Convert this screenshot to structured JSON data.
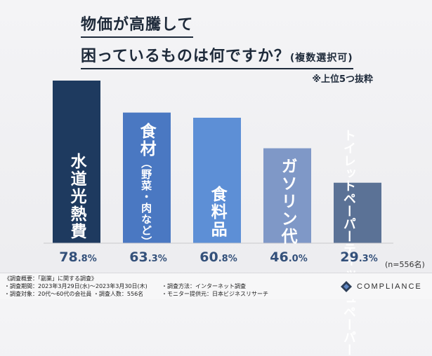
{
  "title": {
    "line1": "物価が高騰して",
    "line2": "困っているものは何ですか？",
    "line2_suffix": "(複数選択可)"
  },
  "note": "※上位5つ抜粋",
  "n_note": "(n=556名)",
  "chart_data": {
    "type": "bar",
    "categories": [
      "水道光熱費",
      "食材（野菜・肉など）",
      "食料品",
      "ガソリン代",
      "トイレットペーパー ティッシュペーパー"
    ],
    "values": [
      78.8,
      63.3,
      60.8,
      46.0,
      29.3
    ],
    "value_labels": [
      {
        "int": "78",
        "dec": ".8%"
      },
      {
        "int": "63",
        "dec": ".3%"
      },
      {
        "int": "60",
        "dec": ".8%"
      },
      {
        "int": "46",
        "dec": ".0%"
      },
      {
        "int": "29",
        "dec": ".3%"
      }
    ],
    "colors": [
      "#1e3a5f",
      "#4a78c2",
      "#5d8fd6",
      "#7f98c7",
      "#5b7296"
    ],
    "ylim": [
      0,
      100
    ],
    "grid": false
  },
  "labels": {
    "bar1": "水道光熱費",
    "bar2_main": "食材",
    "bar2_sub": "（野菜・肉など）",
    "bar3": "食料品",
    "bar4": "ガソリン代",
    "bar5_line1": "トイレットペーパー",
    "bar5_line2": "ティッシュペーパー"
  },
  "footer": {
    "col1": [
      "《調査概要：「副業」に関する調査》",
      "・調査期間：2023年3月29日(水)～2023年3月30日(木)",
      "・調査対象：20代～60代の会社員 ・調査人数：556名"
    ],
    "col2": [
      "・調査方法：インターネット調査",
      "・モニター提供元：日本ビジネスリサーチ"
    ],
    "brand": "COMPLIANCE"
  }
}
